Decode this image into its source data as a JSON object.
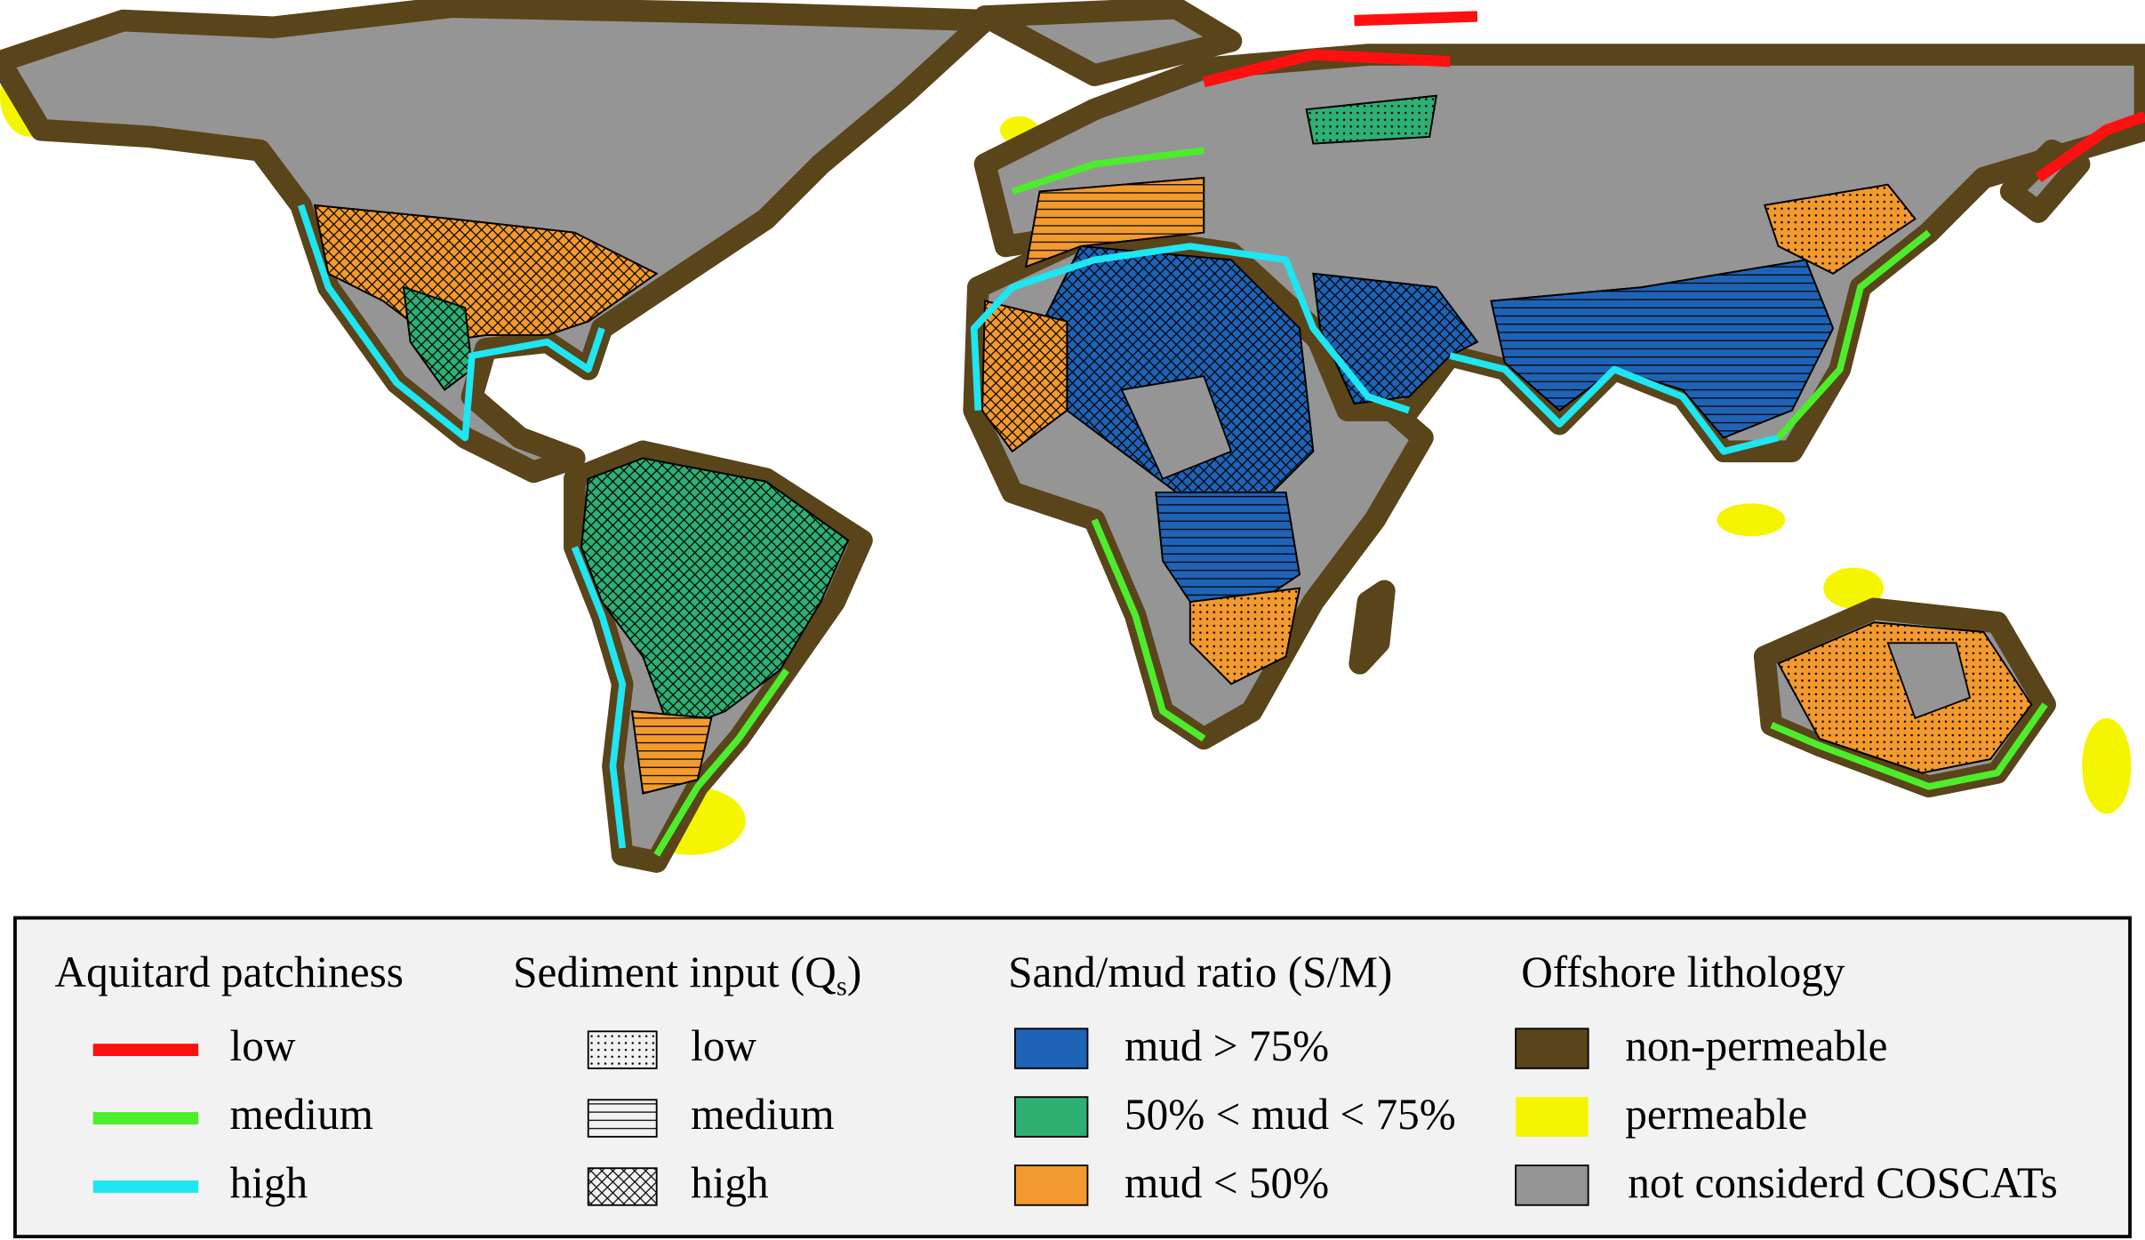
{
  "legend": {
    "groups": [
      {
        "title": "Aquitard patchiness",
        "items": [
          "low",
          "medium",
          "high"
        ]
      },
      {
        "title": "Sediment input (Q",
        "title_subscript": "s",
        "title_end": ")",
        "items": [
          "low",
          "medium",
          "high"
        ]
      },
      {
        "title": "Sand/mud ratio (S/M)",
        "items": [
          "mud > 75%",
          "50% < mud < 75%",
          "mud < 50%"
        ]
      },
      {
        "title": "Offshore lithology",
        "items": [
          "non-permeable",
          "permeable",
          "not considerd COSCATs"
        ]
      }
    ]
  }
}
